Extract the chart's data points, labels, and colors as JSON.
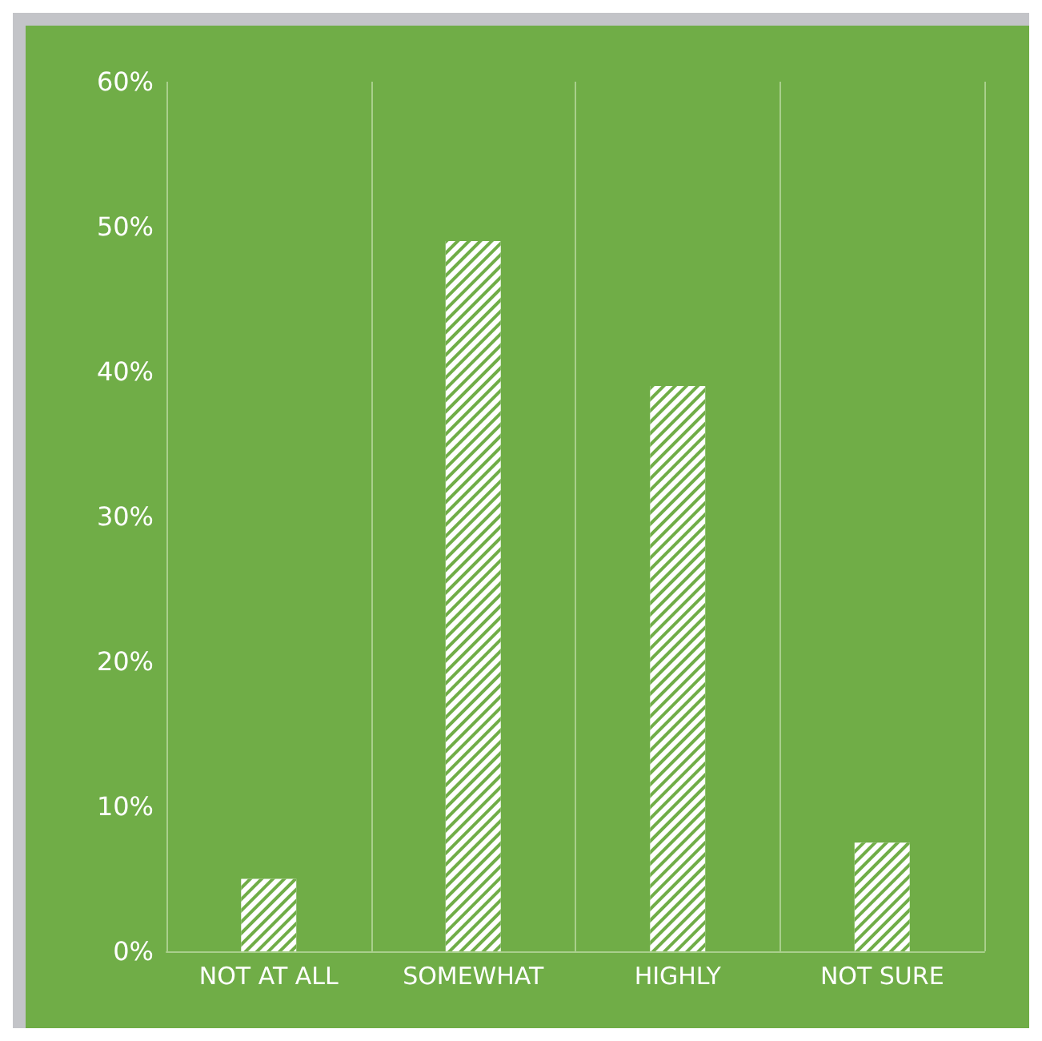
{
  "chart_data": {
    "type": "bar",
    "categories": [
      "NOT AT ALL",
      "SOMEWHAT",
      "HIGHLY",
      "NOT SURE"
    ],
    "values": [
      5,
      49,
      39,
      7.5
    ],
    "color": "#ffffff",
    "ylim": [
      0,
      60
    ],
    "yticks": [
      {
        "value": 0,
        "label": "0%"
      },
      {
        "value": 10,
        "label": "10%"
      },
      {
        "value": 20,
        "label": "20%"
      },
      {
        "value": 30,
        "label": "30%"
      },
      {
        "value": 40,
        "label": "40%"
      },
      {
        "value": 50,
        "label": "50%"
      },
      {
        "value": 60,
        "label": "60%"
      }
    ],
    "grid": "x"
  }
}
